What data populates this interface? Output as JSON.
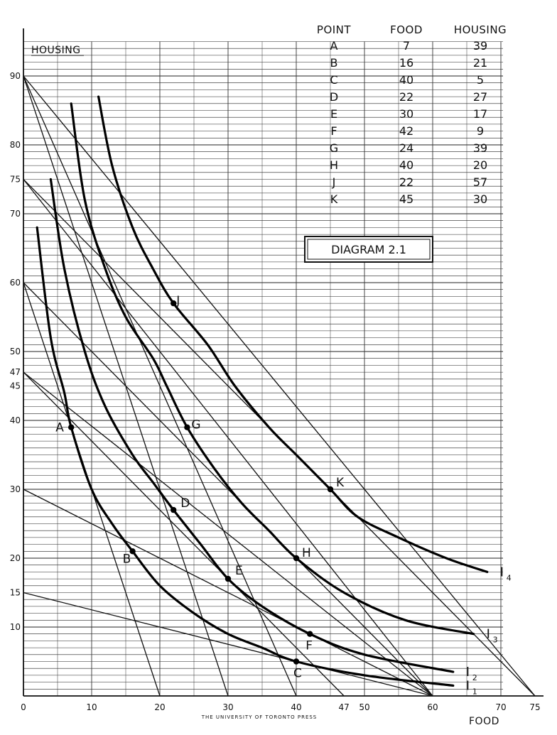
{
  "chart_data": {
    "type": "line",
    "title": "DIAGRAM 2.1",
    "xlabel": "FOOD",
    "ylabel": "HOUSING",
    "xlim": [
      0,
      75
    ],
    "ylim": [
      0,
      95
    ],
    "grid": true,
    "x_ticks": [
      "0",
      "10",
      "20",
      "30",
      "40",
      "47",
      "50",
      "60",
      "70",
      "75"
    ],
    "x_tick_values": [
      0,
      10,
      20,
      30,
      40,
      47,
      50,
      60,
      70,
      75
    ],
    "y_ticks": [
      "10",
      "15",
      "20",
      "30",
      "40",
      "45",
      "47",
      "50",
      "60",
      "70",
      "75",
      "80",
      "90"
    ],
    "y_tick_values": [
      10,
      15,
      20,
      30,
      40,
      45,
      47,
      50,
      60,
      70,
      75,
      80,
      90
    ],
    "table": {
      "headers": [
        "POINT",
        "FOOD",
        "HOUSING"
      ],
      "rows": [
        [
          "A",
          "7",
          "39"
        ],
        [
          "B",
          "16",
          "21"
        ],
        [
          "C",
          "40",
          "5"
        ],
        [
          "D",
          "22",
          "27"
        ],
        [
          "E",
          "30",
          "17"
        ],
        [
          "F",
          "42",
          "9"
        ],
        [
          "G",
          "24",
          "39"
        ],
        [
          "H",
          "40",
          "20"
        ],
        [
          "J",
          "22",
          "57"
        ],
        [
          "K",
          "45",
          "30"
        ]
      ]
    },
    "points": [
      {
        "label": "A",
        "x": 7,
        "y": 39
      },
      {
        "label": "B",
        "x": 16,
        "y": 21
      },
      {
        "label": "C",
        "x": 40,
        "y": 5
      },
      {
        "label": "D",
        "x": 22,
        "y": 27
      },
      {
        "label": "E",
        "x": 30,
        "y": 17
      },
      {
        "label": "F",
        "x": 42,
        "y": 9
      },
      {
        "label": "G",
        "x": 24,
        "y": 39
      },
      {
        "label": "H",
        "x": 40,
        "y": 20
      },
      {
        "label": "J",
        "x": 22,
        "y": 57
      },
      {
        "label": "K",
        "x": 45,
        "y": 30
      }
    ],
    "indifference_curves": [
      {
        "name": "I",
        "sub": "1",
        "points": [
          [
            2,
            68
          ],
          [
            4,
            52
          ],
          [
            6,
            44
          ],
          [
            7,
            39
          ],
          [
            10,
            30
          ],
          [
            13,
            25
          ],
          [
            16,
            21
          ],
          [
            20,
            16
          ],
          [
            25,
            12
          ],
          [
            30,
            9
          ],
          [
            35,
            7
          ],
          [
            40,
            5
          ],
          [
            50,
            3
          ],
          [
            63,
            1.5
          ]
        ]
      },
      {
        "name": "I",
        "sub": "2",
        "points": [
          [
            4,
            75
          ],
          [
            6,
            62
          ],
          [
            9,
            50
          ],
          [
            12,
            42
          ],
          [
            16,
            35
          ],
          [
            19,
            31
          ],
          [
            22,
            27
          ],
          [
            26,
            22
          ],
          [
            30,
            17
          ],
          [
            35,
            13
          ],
          [
            42,
            9
          ],
          [
            50,
            6
          ],
          [
            63,
            3.5
          ]
        ]
      },
      {
        "name": "I",
        "sub": "3",
        "points": [
          [
            7,
            86
          ],
          [
            9,
            72
          ],
          [
            12,
            62
          ],
          [
            15,
            55
          ],
          [
            19,
            49
          ],
          [
            21,
            45
          ],
          [
            24,
            39
          ],
          [
            28,
            33
          ],
          [
            32,
            28
          ],
          [
            36,
            24
          ],
          [
            40,
            20
          ],
          [
            47,
            15
          ],
          [
            56,
            11
          ],
          [
            66,
            9
          ]
        ]
      },
      {
        "name": "I",
        "sub": "4",
        "points": [
          [
            11,
            87
          ],
          [
            13,
            77
          ],
          [
            16,
            68
          ],
          [
            19,
            62
          ],
          [
            22,
            57
          ],
          [
            27,
            51
          ],
          [
            31,
            45
          ],
          [
            36,
            39
          ],
          [
            40,
            35
          ],
          [
            45,
            30
          ],
          [
            49,
            26
          ],
          [
            55,
            23
          ],
          [
            62,
            20
          ],
          [
            68,
            18
          ]
        ]
      }
    ],
    "budget_lines": [
      {
        "x_intercept": 60,
        "y_intercept": 15
      },
      {
        "x_intercept": 60,
        "y_intercept": 30
      },
      {
        "x_intercept": 60,
        "y_intercept": 47
      },
      {
        "x_intercept": 60,
        "y_intercept": 60
      },
      {
        "x_intercept": 60,
        "y_intercept": 75
      },
      {
        "x_intercept": 75,
        "y_intercept": 75
      },
      {
        "x_intercept": 75,
        "y_intercept": 90
      },
      {
        "x_intercept": 47,
        "y_intercept": 47
      },
      {
        "x_intercept": 40,
        "y_intercept": 90
      },
      {
        "x_intercept": 20,
        "y_intercept": 60
      },
      {
        "x_intercept": 30,
        "y_intercept": 90
      }
    ]
  },
  "footer": "THE UNIVERSITY OF TORONTO PRESS"
}
